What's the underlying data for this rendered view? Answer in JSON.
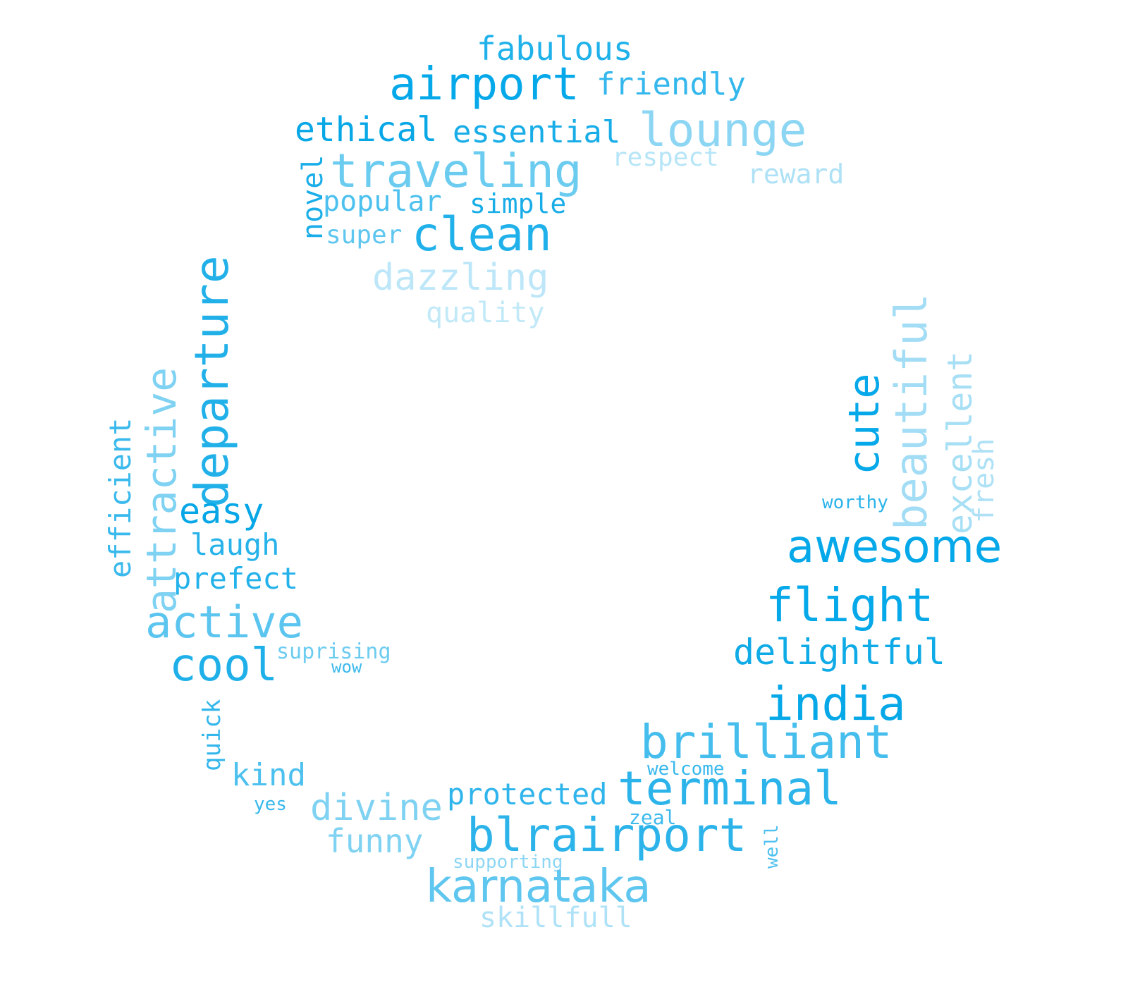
{
  "words": [
    {
      "text": "fabulous",
      "color": "#1fb2ea"
    },
    {
      "text": "airport",
      "color": "#05a8e9"
    },
    {
      "text": "friendly",
      "color": "#34b7ec"
    },
    {
      "text": "ethical",
      "color": "#08a7e6"
    },
    {
      "text": "essential",
      "color": "#19ade8"
    },
    {
      "text": "lounge",
      "color": "#8dd6f3"
    },
    {
      "text": "respect",
      "color": "#b6e5f7"
    },
    {
      "text": "reward",
      "color": "#aee1f6"
    },
    {
      "text": "traveling",
      "color": "#6cccf0"
    },
    {
      "text": "novel",
      "color": "#1aaee8"
    },
    {
      "text": "popular",
      "color": "#4cc0ee"
    },
    {
      "text": "simple",
      "color": "#19ade8"
    },
    {
      "text": "super",
      "color": "#5ec6ef"
    },
    {
      "text": "clean",
      "color": "#21b1ea"
    },
    {
      "text": "dazzling",
      "color": "#bde7f8"
    },
    {
      "text": "quality",
      "color": "#c2e9f8"
    },
    {
      "text": "departure",
      "color": "#22b0e9"
    },
    {
      "text": "attractive",
      "color": "#7fd2f2"
    },
    {
      "text": "efficient",
      "color": "#3ab9ec"
    },
    {
      "text": "easy",
      "color": "#07a7e7"
    },
    {
      "text": "laugh",
      "color": "#27b3ea"
    },
    {
      "text": "prefect",
      "color": "#24b2ea"
    },
    {
      "text": "active",
      "color": "#5bc5ef"
    },
    {
      "text": "cool",
      "color": "#1fb0e9"
    },
    {
      "text": "suprising",
      "color": "#6cccf0"
    },
    {
      "text": "wow",
      "color": "#3cbaec"
    },
    {
      "text": "quick",
      "color": "#33b6eb"
    },
    {
      "text": "kind",
      "color": "#4cc0ee"
    },
    {
      "text": "yes",
      "color": "#38b8ec"
    },
    {
      "text": "divine",
      "color": "#7fd2f2"
    },
    {
      "text": "funny",
      "color": "#7fd2f2"
    },
    {
      "text": "cute",
      "color": "#05a8e9"
    },
    {
      "text": "beautiful",
      "color": "#a3ddf5"
    },
    {
      "text": "excellent",
      "color": "#a7dff5"
    },
    {
      "text": "fresh",
      "color": "#aee1f6"
    },
    {
      "text": "worthy",
      "color": "#2cb4ea"
    },
    {
      "text": "awesome",
      "color": "#05a8e9"
    },
    {
      "text": "flight",
      "color": "#05a8e9"
    },
    {
      "text": "delightful",
      "color": "#0fabe7"
    },
    {
      "text": "india",
      "color": "#07a8e8"
    },
    {
      "text": "brilliant",
      "color": "#45beed"
    },
    {
      "text": "welcome",
      "color": "#38b8ec"
    },
    {
      "text": "terminal",
      "color": "#2cb4ea"
    },
    {
      "text": "protected",
      "color": "#2fb5eb"
    },
    {
      "text": "zeal",
      "color": "#3cbaec"
    },
    {
      "text": "well",
      "color": "#4cc0ee"
    },
    {
      "text": "blrairport",
      "color": "#2cb4ea"
    },
    {
      "text": "supporting",
      "color": "#8dd6f3"
    },
    {
      "text": "karnataka",
      "color": "#5ec6ef"
    },
    {
      "text": "skillfull",
      "color": "#b0e2f7"
    }
  ]
}
